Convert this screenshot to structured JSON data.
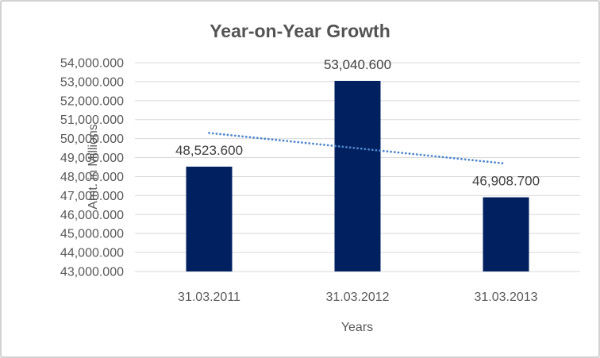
{
  "window": {
    "background": "#ffffff",
    "border_color": "#d2d2d2"
  },
  "chart_data": {
    "type": "bar",
    "title": "Year-on-Year Growth",
    "xlabel": "Years",
    "ylabel": "Amt. in Millions",
    "categories": [
      "31.03.2011",
      "31.03.2012",
      "31.03.2013"
    ],
    "values": [
      48523.6,
      53040.6,
      46908.7
    ],
    "data_labels": [
      "48,523.600",
      "53,040.600",
      "46,908.700"
    ],
    "y_ticks": [
      "54,000.000",
      "53,000.000",
      "52,000.000",
      "51,000.000",
      "50,000.000",
      "49,000.000",
      "48,000.000",
      "47,000.000",
      "46,000.000",
      "45,000.000",
      "44,000.000",
      "43,000.000"
    ],
    "ylim": [
      43000,
      54000
    ],
    "y_tick_step": 1000,
    "grid": true,
    "legend": "none",
    "trendline": {
      "style": "dotted",
      "color": "#4f87cb",
      "endpoint_values": [
        50298,
        48684
      ]
    },
    "colors": {
      "bar": "#002060",
      "grid": "#d9d9d9",
      "title_text": "#535353",
      "axis_text": "#595959",
      "data_label_text": "#3f3f3f"
    }
  }
}
